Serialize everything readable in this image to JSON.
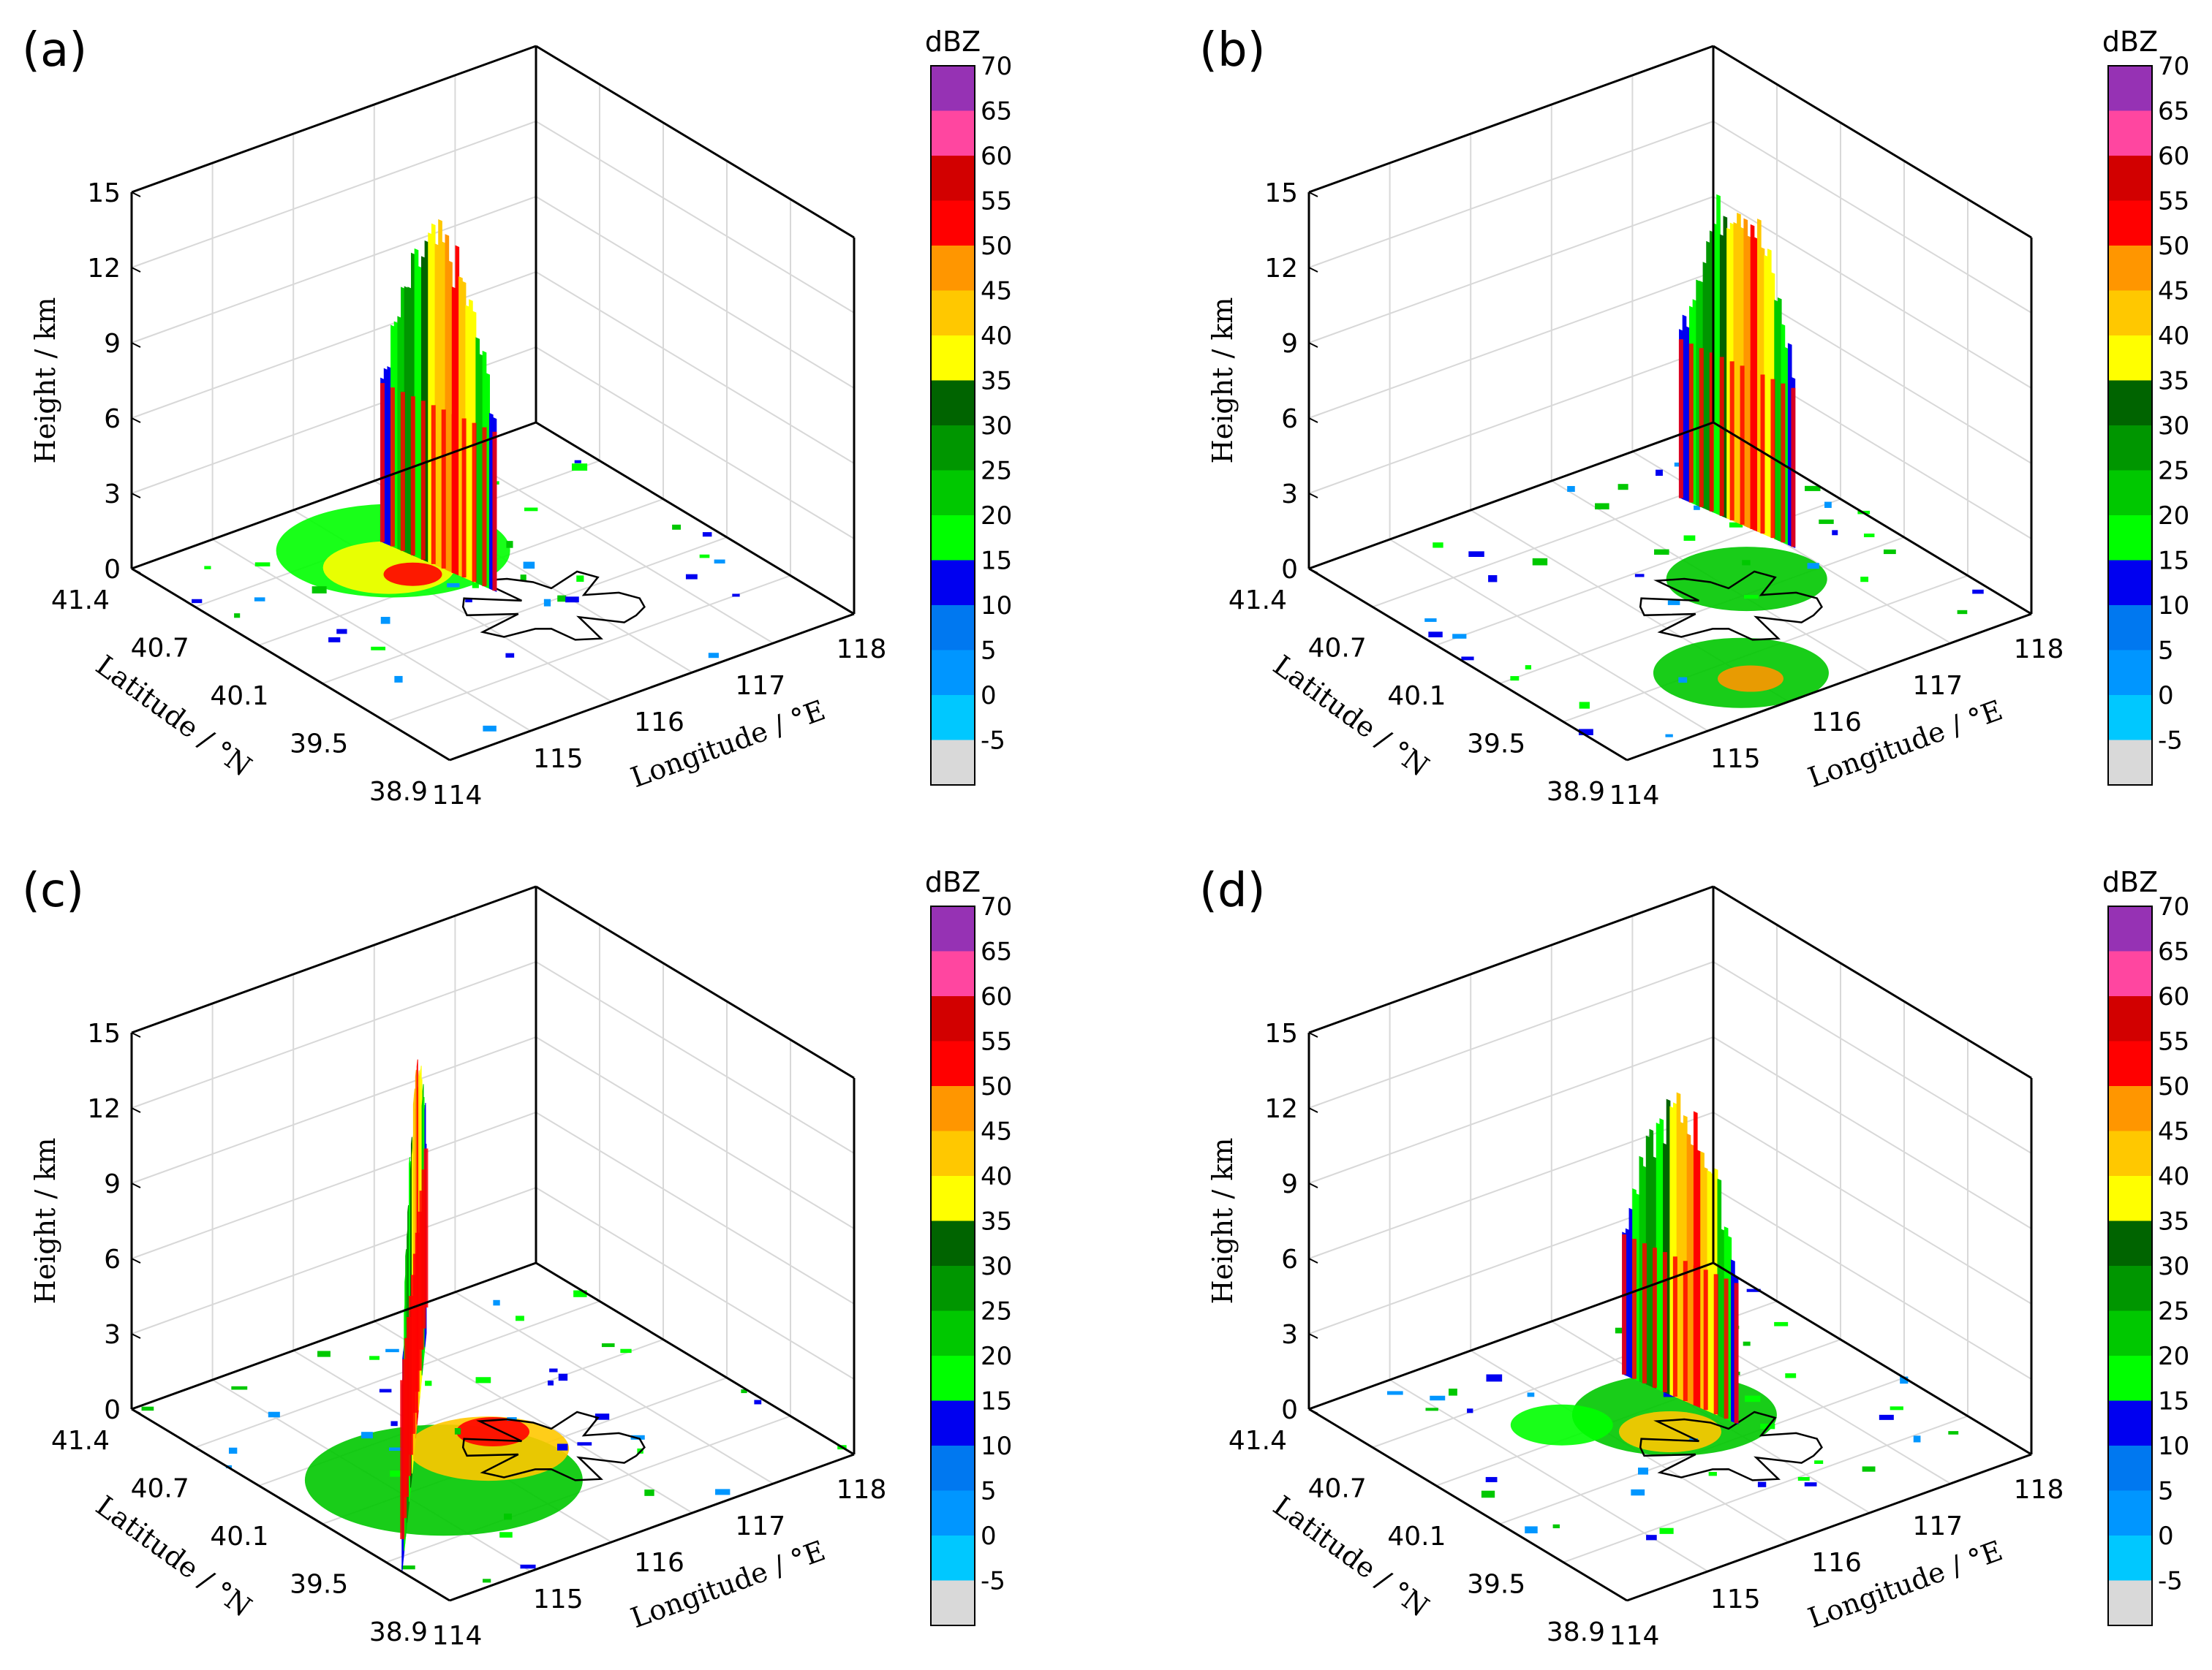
{
  "colors": {
    "-5": "#d9d9d9",
    "0": "#00c8ff",
    "5": "#0096ff",
    "10": "#0078f0",
    "15": "#0000f0",
    "20": "#00ff00",
    "25": "#00c800",
    "30": "#009600",
    "35": "#006400",
    "40": "#ffff00",
    "45": "#ffc800",
    "50": "#ff9600",
    "55": "#ff0000",
    "60": "#d20000",
    "65": "#ff46a0",
    "70": "#9632b4"
  },
  "chart_data": [
    {
      "type": "heatmap",
      "panel": "(a)",
      "subtype": "3D radar reflectivity cross-section",
      "zlabel": "Height / km",
      "zticks": [
        "0",
        "3",
        "6",
        "9",
        "12",
        "15"
      ],
      "zlim": [
        0,
        15
      ],
      "ylabel": "Latitude / °N",
      "yticks": [
        "41.4",
        "40.7",
        "40.1",
        "39.5",
        "38.9"
      ],
      "xlabel": "Longitude / °E",
      "xticks": [
        "114",
        "115",
        "116",
        "117",
        "118"
      ],
      "colorbar": {
        "title": "dBZ",
        "ticks": [
          "70",
          "65",
          "60",
          "55",
          "50",
          "45",
          "40",
          "35",
          "30",
          "25",
          "20",
          "15",
          "10",
          "5",
          "0",
          "-5"
        ]
      },
      "features": {
        "curtain_top_km": 15,
        "max_dbz": 60
      }
    },
    {
      "type": "heatmap",
      "panel": "(b)",
      "subtype": "3D radar reflectivity cross-section",
      "zlabel": "Height / km",
      "zticks": [
        "0",
        "3",
        "6",
        "9",
        "12",
        "15"
      ],
      "zlim": [
        0,
        15
      ],
      "ylabel": "Latitude / °N",
      "yticks": [
        "41.4",
        "40.7",
        "40.1",
        "39.5",
        "38.9"
      ],
      "xlabel": "Longitude / °E",
      "xticks": [
        "114",
        "115",
        "116",
        "117",
        "118"
      ],
      "colorbar": {
        "title": "dBZ",
        "ticks": [
          "70",
          "65",
          "60",
          "55",
          "50",
          "45",
          "40",
          "35",
          "30",
          "25",
          "20",
          "15",
          "10",
          "5",
          "0",
          "-5"
        ]
      },
      "features": {
        "curtain_top_km": 15,
        "max_dbz": 55
      }
    },
    {
      "type": "heatmap",
      "panel": "(c)",
      "subtype": "3D radar reflectivity cross-section",
      "zlabel": "Height / km",
      "zticks": [
        "0",
        "3",
        "6",
        "9",
        "12",
        "15"
      ],
      "zlim": [
        0,
        15
      ],
      "ylabel": "Latitude / °N",
      "yticks": [
        "41.4",
        "40.7",
        "40.1",
        "39.5",
        "38.9"
      ],
      "xlabel": "Longitude / °E",
      "xticks": [
        "114",
        "115",
        "116",
        "117",
        "118"
      ],
      "colorbar": {
        "title": "dBZ",
        "ticks": [
          "70",
          "65",
          "60",
          "55",
          "50",
          "45",
          "40",
          "35",
          "30",
          "25",
          "20",
          "15",
          "10",
          "5",
          "0",
          "-5"
        ]
      },
      "features": {
        "curtain_top_km": 15,
        "max_dbz": 60
      }
    },
    {
      "type": "heatmap",
      "panel": "(d)",
      "subtype": "3D radar reflectivity cross-section",
      "zlabel": "Height / km",
      "zticks": [
        "0",
        "3",
        "6",
        "9",
        "12",
        "15"
      ],
      "zlim": [
        0,
        15
      ],
      "ylabel": "Latitude / °N",
      "yticks": [
        "41.4",
        "40.7",
        "40.1",
        "39.5",
        "38.9"
      ],
      "xlabel": "Longitude / °E",
      "xticks": [
        "114",
        "115",
        "116",
        "117",
        "118"
      ],
      "colorbar": {
        "title": "dBZ",
        "ticks": [
          "70",
          "65",
          "60",
          "55",
          "50",
          "45",
          "40",
          "35",
          "30",
          "25",
          "20",
          "15",
          "10",
          "5",
          "0",
          "-5"
        ]
      },
      "features": {
        "curtain_top_km": 13.5,
        "max_dbz": 55
      }
    }
  ]
}
